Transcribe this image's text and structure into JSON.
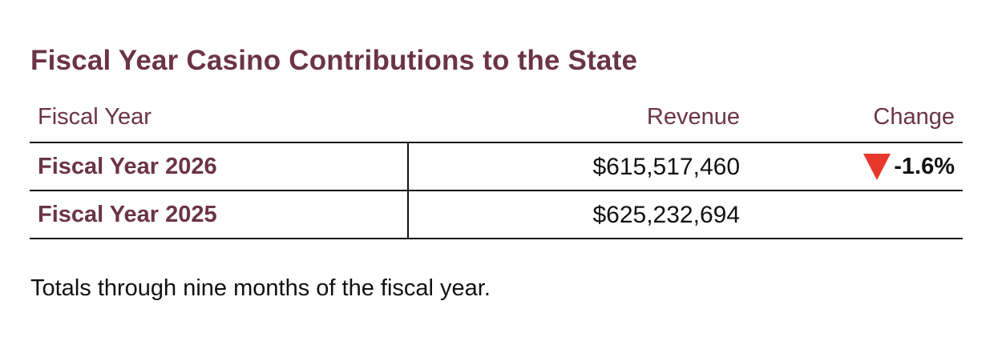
{
  "title": "Fiscal Year Casino Contributions to the State",
  "table": {
    "headers": {
      "fiscal_year": "Fiscal Year",
      "revenue": "Revenue",
      "change": "Change"
    },
    "rows": [
      {
        "fiscal_year": "Fiscal Year 2026",
        "revenue": "$615,517,460",
        "change": "-1.6%",
        "change_direction": "down"
      },
      {
        "fiscal_year": "Fiscal Year 2025",
        "revenue": "$625,232,694",
        "change": ""
      }
    ]
  },
  "note": "Totals through nine months of the fiscal year.",
  "colors": {
    "accent": "#6b3446",
    "down_indicator": "#e8382b",
    "text": "#111111"
  },
  "icons": {
    "change_down": "down-triangle-icon"
  }
}
